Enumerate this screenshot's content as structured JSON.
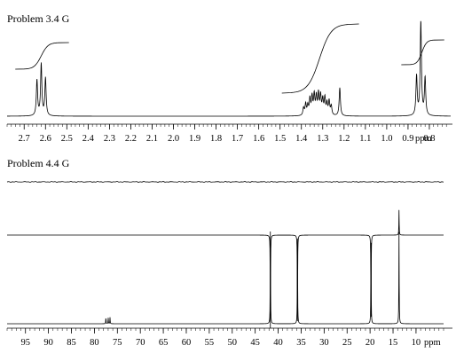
{
  "chart_data": [
    {
      "type": "line",
      "title": "Problem 3.4 G",
      "x_unit": "ppm",
      "x_axis": "reversed",
      "xlim": [
        2.78,
        0.7
      ],
      "x_ticks": [
        2.7,
        2.6,
        2.5,
        2.4,
        2.3,
        2.2,
        2.1,
        2.0,
        1.9,
        1.8,
        1.7,
        1.6,
        1.5,
        1.4,
        1.3,
        1.2,
        1.1,
        1.0,
        0.9,
        0.8
      ],
      "x_tick_labels": [
        "2.7",
        "2.6",
        "2.5",
        "2.4",
        "2.3",
        "2.2",
        "2.1",
        "2.0",
        "1.9",
        "1.8",
        "1.7",
        "1.6",
        "1.5",
        "1.4",
        "1.3",
        "1.2",
        "1.1",
        "1.0",
        "0.9",
        "0.8"
      ],
      "peaks": [
        {
          "x": 2.64,
          "y": 0.38
        },
        {
          "x": 2.62,
          "y": 0.55
        },
        {
          "x": 2.6,
          "y": 0.4
        },
        {
          "x": 1.39,
          "y": 0.08
        },
        {
          "x": 1.38,
          "y": 0.12
        },
        {
          "x": 1.37,
          "y": 0.1
        },
        {
          "x": 1.36,
          "y": 0.17
        },
        {
          "x": 1.35,
          "y": 0.19
        },
        {
          "x": 1.34,
          "y": 0.21
        },
        {
          "x": 1.33,
          "y": 0.19
        },
        {
          "x": 1.32,
          "y": 0.22
        },
        {
          "x": 1.31,
          "y": 0.2
        },
        {
          "x": 1.3,
          "y": 0.16
        },
        {
          "x": 1.29,
          "y": 0.18
        },
        {
          "x": 1.28,
          "y": 0.12
        },
        {
          "x": 1.27,
          "y": 0.15
        },
        {
          "x": 1.26,
          "y": 0.1
        },
        {
          "x": 1.22,
          "y": 0.3
        },
        {
          "x": 0.86,
          "y": 0.42
        },
        {
          "x": 0.84,
          "y": 1.0
        },
        {
          "x": 0.82,
          "y": 0.4
        }
      ],
      "integrals": [
        {
          "from": 2.7,
          "to": 2.54,
          "rise": 0.3
        },
        {
          "from": 1.45,
          "to": 1.18,
          "rise": 0.78
        },
        {
          "from": 0.89,
          "to": 0.78,
          "rise": 0.28
        }
      ],
      "colors": {
        "trace": "#000000",
        "background": "#ffffff"
      }
    },
    {
      "type": "line",
      "title": "Problem 4.4 G",
      "x_unit": "ppm",
      "x_axis": "reversed",
      "xlim": [
        99,
        4
      ],
      "x_ticks": [
        95,
        90,
        85,
        80,
        75,
        70,
        65,
        60,
        55,
        50,
        45,
        40,
        35,
        30,
        25,
        20,
        15,
        10
      ],
      "x_tick_labels": [
        "95",
        "90",
        "85",
        "80",
        "75",
        "70",
        "65",
        "60",
        "55",
        "50",
        "45",
        "40",
        "35",
        "30",
        "25",
        "20",
        "15",
        "10"
      ],
      "traces": [
        {
          "role": "top",
          "peaks": []
        },
        {
          "role": "middle",
          "peaks": [
            {
              "x": 41.7,
              "y": -1.0
            },
            {
              "x": 35.8,
              "y": -1.0
            },
            {
              "x": 19.8,
              "y": -1.0
            },
            {
              "x": 13.7,
              "y": 0.27
            }
          ]
        },
        {
          "role": "bottom",
          "peaks": [
            {
              "x": 77.5,
              "y": 0.07
            },
            {
              "x": 77.0,
              "y": 0.07
            },
            {
              "x": 76.6,
              "y": 0.07
            },
            {
              "x": 41.7,
              "y": 1.0
            },
            {
              "x": 35.8,
              "y": 1.0
            },
            {
              "x": 19.8,
              "y": 1.0
            },
            {
              "x": 13.7,
              "y": 1.0
            }
          ]
        }
      ],
      "colors": {
        "trace": "#000000",
        "background": "#ffffff"
      }
    }
  ]
}
